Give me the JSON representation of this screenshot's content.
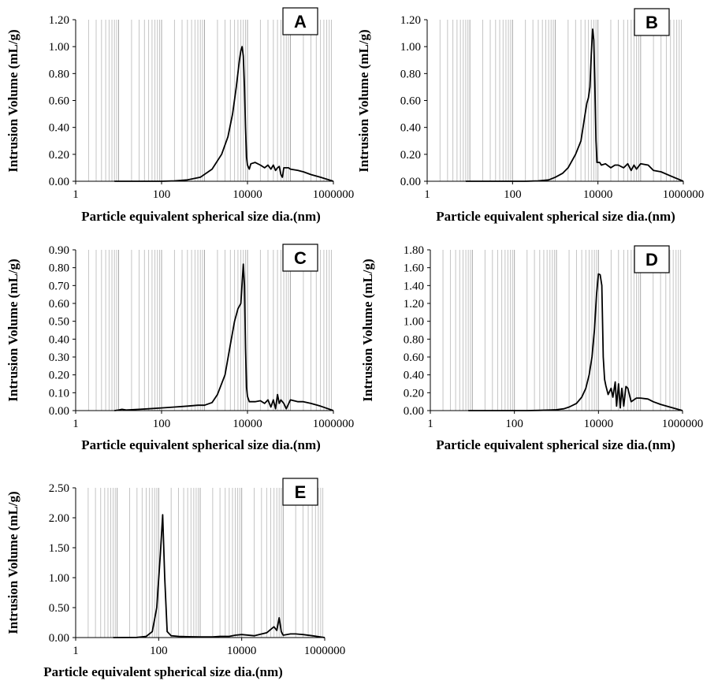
{
  "chart_data": [
    {
      "type": "line",
      "panel_label": "A",
      "xlabel": "Particle equivalent spherical size dia.(nm)",
      "ylabel": "Intrusion Volume (mL/g)",
      "xscale": "log",
      "xlim": [
        1,
        1000000
      ],
      "xticks": [
        "1",
        "100",
        "10000",
        "1000000"
      ],
      "ylim": [
        0,
        1.2
      ],
      "yticks": [
        "0.00",
        "0.20",
        "0.40",
        "0.60",
        "0.80",
        "1.00",
        "1.20"
      ],
      "grid": "log vertical",
      "series": [
        {
          "x": [
            8,
            50,
            100,
            200,
            400,
            800,
            1500,
            2500,
            3500,
            4500,
            5500,
            6500,
            7000,
            7500,
            8000,
            8500,
            9000,
            9500,
            10000,
            11000,
            12000,
            15000,
            20000,
            25000,
            30000,
            35000,
            40000,
            45000,
            50000,
            55000,
            60000,
            65000,
            70000,
            80000,
            90000,
            100000,
            150000,
            200000,
            300000,
            500000,
            700000,
            1000000
          ],
          "y": [
            0.0,
            0.0,
            0.0,
            0.003,
            0.01,
            0.03,
            0.09,
            0.2,
            0.33,
            0.5,
            0.7,
            0.9,
            0.97,
            1.0,
            0.93,
            0.7,
            0.4,
            0.18,
            0.12,
            0.09,
            0.13,
            0.14,
            0.12,
            0.1,
            0.12,
            0.09,
            0.12,
            0.08,
            0.1,
            0.11,
            0.05,
            0.03,
            0.1,
            0.1,
            0.1,
            0.09,
            0.08,
            0.07,
            0.05,
            0.03,
            0.015,
            0.0
          ]
        }
      ]
    },
    {
      "type": "line",
      "panel_label": "B",
      "xlabel": "Particle equivalent spherical size dia.(nm)",
      "ylabel": "Intrusion Volume (mL/g)",
      "xscale": "log",
      "xlim": [
        1,
        1000000
      ],
      "xticks": [
        "1",
        "100",
        "10000",
        "1000000"
      ],
      "ylim": [
        0,
        1.2
      ],
      "yticks": [
        "0.00",
        "0.20",
        "0.40",
        "0.60",
        "0.80",
        "1.00",
        "1.20"
      ],
      "grid": "log vertical",
      "series": [
        {
          "x": [
            8,
            50,
            100,
            200,
            400,
            700,
            1000,
            1500,
            2000,
            3000,
            4000,
            5000,
            5500,
            6000,
            6500,
            7000,
            7500,
            8000,
            8500,
            9000,
            9500,
            10000,
            11000,
            12000,
            15000,
            20000,
            25000,
            30000,
            40000,
            50000,
            60000,
            70000,
            80000,
            100000,
            150000,
            200000,
            300000,
            500000,
            1000000
          ],
          "y": [
            0.0,
            0.0,
            0.0,
            0.0,
            0.003,
            0.01,
            0.03,
            0.06,
            0.1,
            0.2,
            0.3,
            0.5,
            0.58,
            0.62,
            0.7,
            0.95,
            1.13,
            1.05,
            0.7,
            0.3,
            0.14,
            0.14,
            0.14,
            0.12,
            0.13,
            0.1,
            0.12,
            0.12,
            0.1,
            0.13,
            0.08,
            0.12,
            0.09,
            0.13,
            0.12,
            0.08,
            0.07,
            0.04,
            0.0
          ]
        }
      ]
    },
    {
      "type": "line",
      "panel_label": "C",
      "xlabel": "Particle equivalent spherical size dia.(nm)",
      "ylabel": "Intrusion Volume (mL/g)",
      "xscale": "log",
      "xlim": [
        1,
        1000000
      ],
      "xticks": [
        "1",
        "100",
        "10000",
        "1000000"
      ],
      "ylim": [
        0,
        0.9
      ],
      "yticks": [
        "0.00",
        "0.10",
        "0.20",
        "0.30",
        "0.40",
        "0.50",
        "0.60",
        "0.70",
        "0.80",
        "0.90"
      ],
      "grid": "log vertical",
      "series": [
        {
          "x": [
            8,
            10,
            12,
            15,
            20,
            30,
            50,
            100,
            200,
            400,
            700,
            1000,
            1500,
            2000,
            3000,
            4000,
            5000,
            6000,
            7000,
            8000,
            8500,
            9000,
            9500,
            10000,
            11000,
            12000,
            15000,
            20000,
            25000,
            30000,
            35000,
            40000,
            45000,
            50000,
            55000,
            60000,
            70000,
            80000,
            100000,
            150000,
            200000,
            300000,
            500000,
            1000000
          ],
          "y": [
            0.0,
            0.003,
            0.007,
            0.003,
            0.005,
            0.007,
            0.01,
            0.015,
            0.02,
            0.025,
            0.03,
            0.03,
            0.045,
            0.09,
            0.2,
            0.37,
            0.5,
            0.57,
            0.6,
            0.82,
            0.7,
            0.35,
            0.13,
            0.08,
            0.05,
            0.05,
            0.05,
            0.055,
            0.04,
            0.06,
            0.02,
            0.06,
            0.01,
            0.09,
            0.04,
            0.06,
            0.04,
            0.01,
            0.06,
            0.05,
            0.05,
            0.04,
            0.025,
            0.0
          ]
        }
      ]
    },
    {
      "type": "line",
      "panel_label": "D",
      "xlabel": "Particle equivalent spherical size dia.(nm)",
      "ylabel": "Intrusion Volume (mL/g)",
      "xscale": "log",
      "xlim": [
        1,
        1000000
      ],
      "xticks": [
        "1",
        "100",
        "10000",
        "1000000"
      ],
      "ylim": [
        0,
        1.8
      ],
      "yticks": [
        "0.00",
        "0.20",
        "0.40",
        "0.60",
        "0.80",
        "1.00",
        "1.20",
        "1.40",
        "1.60",
        "1.80"
      ],
      "grid": "log vertical",
      "series": [
        {
          "x": [
            8,
            50,
            100,
            200,
            400,
            700,
            1000,
            1500,
            2000,
            3000,
            4000,
            5000,
            6000,
            7000,
            8000,
            9000,
            10000,
            11000,
            12000,
            13000,
            14000,
            15000,
            17000,
            20000,
            22000,
            25000,
            27000,
            30000,
            33000,
            36000,
            40000,
            45000,
            50000,
            60000,
            80000,
            100000,
            150000,
            200000,
            300000,
            500000,
            1000000
          ],
          "y": [
            0.0,
            0.0,
            0.0,
            0.0,
            0.003,
            0.006,
            0.01,
            0.02,
            0.04,
            0.08,
            0.15,
            0.25,
            0.4,
            0.6,
            0.9,
            1.3,
            1.53,
            1.52,
            1.4,
            0.6,
            0.35,
            0.28,
            0.18,
            0.25,
            0.15,
            0.32,
            0.05,
            0.3,
            0.03,
            0.25,
            0.05,
            0.27,
            0.25,
            0.1,
            0.14,
            0.14,
            0.13,
            0.1,
            0.07,
            0.04,
            0.0
          ]
        }
      ]
    },
    {
      "type": "line",
      "panel_label": "E",
      "xlabel": "Particle equivalent spherical size dia.(nm)",
      "ylabel": "Intrusion Volume (mL/g)",
      "xscale": "log",
      "xlim": [
        1,
        1000000
      ],
      "xticks": [
        "1",
        "100",
        "10000",
        "1000000"
      ],
      "ylim": [
        0,
        2.5
      ],
      "yticks": [
        "0.00",
        "0.50",
        "1.00",
        "1.50",
        "2.00",
        "2.50"
      ],
      "grid": "log vertical",
      "series": [
        {
          "x": [
            8,
            30,
            50,
            70,
            90,
            110,
            125,
            140,
            160,
            200,
            300,
            500,
            1000,
            2000,
            3000,
            5000,
            7000,
            10000,
            20000,
            40000,
            60000,
            70000,
            80000,
            90000,
            100000,
            150000,
            200000,
            300000,
            500000,
            1000000
          ],
          "y": [
            0.0,
            0.003,
            0.02,
            0.1,
            0.5,
            1.4,
            2.05,
            1.0,
            0.1,
            0.03,
            0.02,
            0.015,
            0.01,
            0.01,
            0.02,
            0.02,
            0.04,
            0.05,
            0.03,
            0.08,
            0.18,
            0.12,
            0.33,
            0.1,
            0.04,
            0.06,
            0.06,
            0.05,
            0.03,
            0.0
          ]
        }
      ]
    }
  ]
}
